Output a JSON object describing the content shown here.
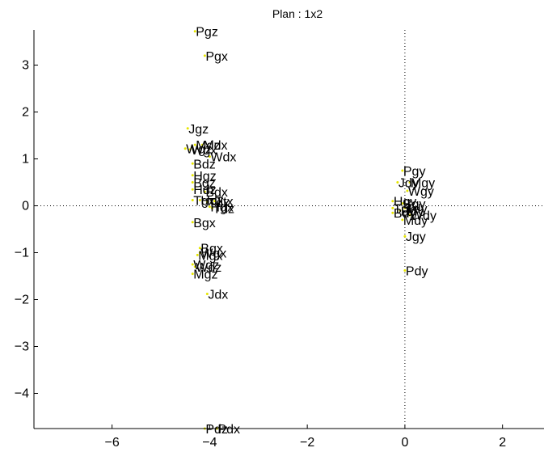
{
  "chart_data": {
    "type": "scatter",
    "title": "Plan : 1x2",
    "xlabel": "",
    "ylabel": "",
    "xlim": [
      -7.6,
      2.85
    ],
    "ylim": [
      -4.75,
      3.75
    ],
    "x_ticks": [
      -6,
      -4,
      -2,
      0,
      2
    ],
    "x_tick_labels": [
      "−6",
      "−4",
      "−2",
      "0",
      "2"
    ],
    "y_ticks": [
      -4,
      -3,
      -2,
      -1,
      0,
      1,
      2,
      3
    ],
    "y_tick_labels": [
      "−4",
      "−3",
      "−2",
      "−1",
      "0",
      "1",
      "2",
      "3"
    ],
    "grid": false,
    "zero_lines": true,
    "point_color": "#e6e600",
    "label_color": "#000000",
    "points": [
      {
        "label": "Pgz",
        "x": -4.3,
        "y": 3.72
      },
      {
        "label": "Pgx",
        "x": -4.1,
        "y": 3.2
      },
      {
        "label": "Jgz",
        "x": -4.45,
        "y": 1.65
      },
      {
        "label": "Mdz",
        "x": -4.3,
        "y": 1.3
      },
      {
        "label": "Mdx",
        "x": -4.15,
        "y": 1.3
      },
      {
        "label": "Wgz",
        "x": -4.5,
        "y": 1.22
      },
      {
        "label": "Wgx",
        "x": -4.4,
        "y": 1.2
      },
      {
        "label": "Wdx",
        "x": -4.0,
        "y": 1.05
      },
      {
        "label": "Bdz",
        "x": -4.35,
        "y": 0.9
      },
      {
        "label": "Hgz",
        "x": -4.35,
        "y": 0.65
      },
      {
        "label": "Bgz",
        "x": -4.35,
        "y": 0.5
      },
      {
        "label": "Hdz",
        "x": -4.35,
        "y": 0.35
      },
      {
        "label": "Bdx",
        "x": -4.1,
        "y": 0.3
      },
      {
        "label": "Tgx",
        "x": -4.35,
        "y": 0.12
      },
      {
        "label": "Hdx",
        "x": -4.2,
        "y": 0.12
      },
      {
        "label": "Tdx",
        "x": -4.05,
        "y": 0.08
      },
      {
        "label": "Ttx",
        "x": -3.9,
        "y": 0.1
      },
      {
        "label": "Hgx",
        "x": -4.0,
        "y": -0.02
      },
      {
        "label": "Tdz",
        "x": -3.95,
        "y": -0.05
      },
      {
        "label": "Bgx",
        "x": -4.35,
        "y": -0.35
      },
      {
        "label": "Pgy",
        "x": -0.05,
        "y": 0.75
      },
      {
        "label": "Jdy",
        "x": -0.15,
        "y": 0.5
      },
      {
        "label": "Mgy",
        "x": 0.1,
        "y": 0.5
      },
      {
        "label": "Wgy",
        "x": 0.05,
        "y": 0.32
      },
      {
        "label": "Hgy",
        "x": -0.25,
        "y": 0.1
      },
      {
        "label": "Bgy",
        "x": -0.05,
        "y": 0.05
      },
      {
        "label": "Tgy",
        "x": -0.25,
        "y": -0.05
      },
      {
        "label": "Tdy",
        "x": 0.0,
        "y": -0.05
      },
      {
        "label": "Bdy",
        "x": -0.25,
        "y": -0.15
      },
      {
        "label": "Hdy",
        "x": -0.1,
        "y": -0.1
      },
      {
        "label": "Wdy",
        "x": 0.1,
        "y": -0.2
      },
      {
        "label": "Mdy",
        "x": -0.05,
        "y": -0.3
      },
      {
        "label": "Jgy",
        "x": 0.0,
        "y": -0.65
      },
      {
        "label": "Pdy",
        "x": 0.0,
        "y": -1.38
      },
      {
        "label": "Bgx",
        "x": -4.2,
        "y": -0.9
      },
      {
        "label": "Wgx",
        "x": -4.2,
        "y": -1.0
      },
      {
        "label": "Mgx",
        "x": -4.25,
        "y": -1.05
      },
      {
        "label": "Wgz",
        "x": -4.35,
        "y": -1.25
      },
      {
        "label": "Wdz",
        "x": -4.3,
        "y": -1.3
      },
      {
        "label": "Mgz",
        "x": -4.35,
        "y": -1.45
      },
      {
        "label": "Jdx",
        "x": -4.05,
        "y": -1.88
      },
      {
        "label": "Pdz",
        "x": -4.1,
        "y": -4.75
      },
      {
        "label": "Pdx",
        "x": -3.85,
        "y": -4.75
      }
    ]
  }
}
